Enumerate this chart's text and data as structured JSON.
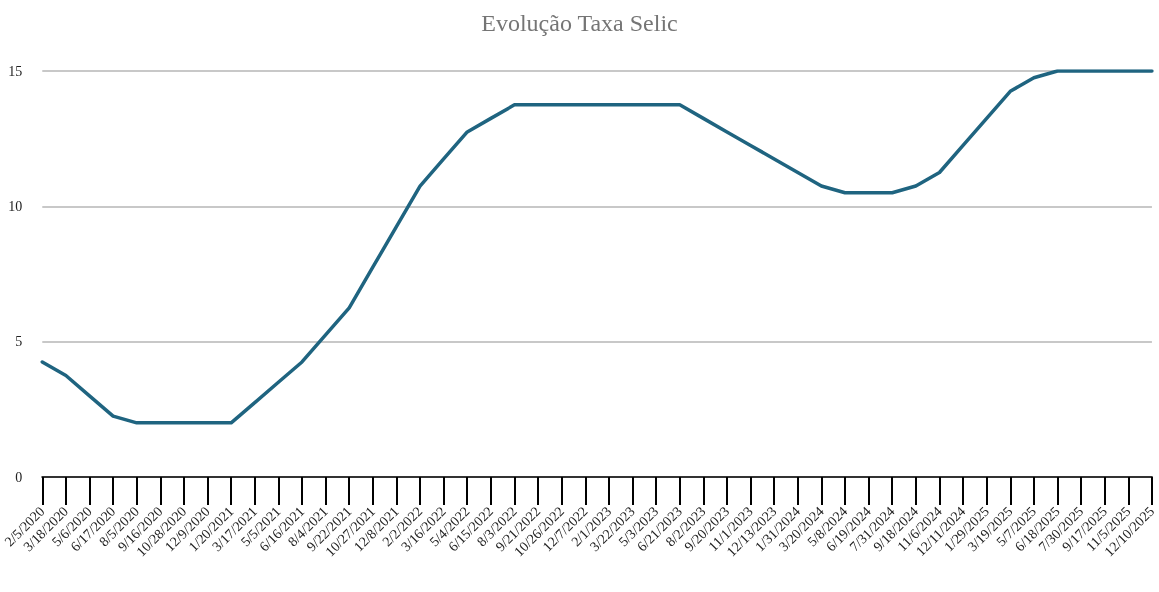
{
  "chart_data": {
    "type": "line",
    "title": "Evolução Taxa Selic",
    "categories": [
      "2/5/2020",
      "3/18/2020",
      "5/6/2020",
      "6/17/2020",
      "8/5/2020",
      "9/16/2020",
      "10/28/2020",
      "12/9/2020",
      "1/20/2021",
      "3/17/2021",
      "5/5/2021",
      "6/16/2021",
      "8/4/2021",
      "9/22/2021",
      "10/27/2021",
      "12/8/2021",
      "2/2/2022",
      "3/16/2022",
      "5/4/2022",
      "6/15/2022",
      "8/3/2022",
      "9/21/2022",
      "10/26/2022",
      "12/7/2022",
      "2/1/2023",
      "3/22/2023",
      "5/3/2023",
      "6/21/2023",
      "8/2/2023",
      "9/20/2023",
      "11/1/2023",
      "12/13/2023",
      "1/31/2024",
      "3/20/2024",
      "5/8/2024",
      "6/19/2024",
      "7/31/2024",
      "9/18/2024",
      "11/6/2024",
      "12/11/2024",
      "1/29/2025",
      "3/19/2025",
      "5/7/2025",
      "6/18/2025",
      "7/30/2025",
      "9/17/2025",
      "11/5/2025",
      "12/10/2025"
    ],
    "series": [
      {
        "color": "#1f6480",
        "values": [
          4.25,
          3.75,
          3,
          2.25,
          2,
          2,
          2,
          2,
          2,
          2.75,
          3.5,
          4.25,
          5.25,
          6.25,
          7.75,
          9.25,
          10.75,
          11.75,
          12.75,
          13.25,
          13.75,
          13.75,
          13.75,
          13.75,
          13.75,
          13.75,
          13.75,
          13.75,
          13.25,
          12.75,
          12.25,
          11.75,
          11.25,
          10.75,
          10.5,
          10.5,
          10.5,
          10.75,
          11.25,
          12.25,
          13.25,
          14.25,
          14.75,
          15,
          15,
          15,
          15,
          15
        ]
      }
    ],
    "ylim": [
      0,
      15
    ],
    "yticks": [
      0,
      5,
      10,
      15
    ],
    "grid": "y",
    "marker": "none",
    "line_style": "solid"
  }
}
